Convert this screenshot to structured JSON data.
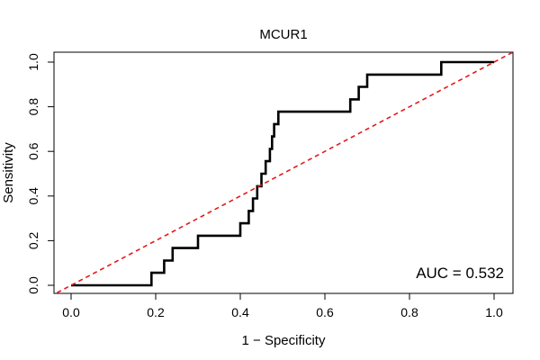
{
  "chart_data": {
    "type": "line",
    "title": "MCUR1",
    "xlabel": "1 − Specificity",
    "ylabel": "Sensitivity",
    "xlim": [
      0,
      1
    ],
    "ylim": [
      0,
      1
    ],
    "x_ticks": [
      "0.0",
      "0.2",
      "0.4",
      "0.6",
      "0.8",
      "1.0"
    ],
    "y_ticks": [
      "0.0",
      "0.2",
      "0.4",
      "0.6",
      "0.8",
      "1.0"
    ],
    "annotation": "AUC = 0.532",
    "grid": false,
    "colors": {
      "roc": "#000000",
      "reference": "#e31a1c"
    },
    "series": [
      {
        "values": [
          [
            0.0,
            0.0
          ],
          [
            0.19,
            0.0
          ],
          [
            0.19,
            0.056
          ],
          [
            0.22,
            0.056
          ],
          [
            0.22,
            0.111
          ],
          [
            0.24,
            0.111
          ],
          [
            0.24,
            0.167
          ],
          [
            0.3,
            0.167
          ],
          [
            0.3,
            0.222
          ],
          [
            0.4,
            0.222
          ],
          [
            0.4,
            0.278
          ],
          [
            0.42,
            0.278
          ],
          [
            0.42,
            0.333
          ],
          [
            0.43,
            0.333
          ],
          [
            0.43,
            0.389
          ],
          [
            0.44,
            0.389
          ],
          [
            0.44,
            0.444
          ],
          [
            0.45,
            0.444
          ],
          [
            0.45,
            0.5
          ],
          [
            0.46,
            0.5
          ],
          [
            0.46,
            0.556
          ],
          [
            0.47,
            0.556
          ],
          [
            0.47,
            0.611
          ],
          [
            0.475,
            0.611
          ],
          [
            0.475,
            0.667
          ],
          [
            0.48,
            0.667
          ],
          [
            0.48,
            0.722
          ],
          [
            0.49,
            0.722
          ],
          [
            0.49,
            0.778
          ],
          [
            0.66,
            0.778
          ],
          [
            0.66,
            0.833
          ],
          [
            0.68,
            0.833
          ],
          [
            0.68,
            0.889
          ],
          [
            0.7,
            0.889
          ],
          [
            0.7,
            0.944
          ],
          [
            0.875,
            0.944
          ],
          [
            0.875,
            1.0
          ],
          [
            1.0,
            1.0
          ]
        ]
      },
      {
        "style": "dashed",
        "values": [
          [
            -0.05,
            -0.05
          ],
          [
            1.05,
            1.05
          ]
        ]
      }
    ]
  }
}
